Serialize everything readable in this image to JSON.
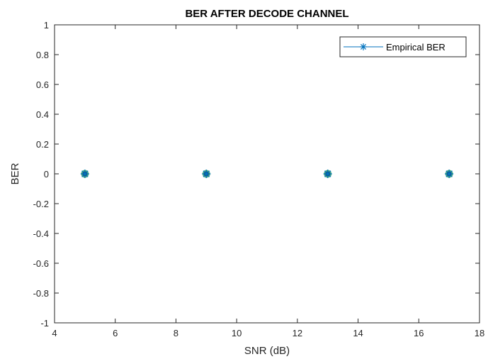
{
  "chart_data": {
    "type": "scatter",
    "title": "BER AFTER DECODE CHANNEL",
    "xlabel": "SNR (dB)",
    "ylabel": "BER",
    "xlim": [
      4,
      18
    ],
    "ylim": [
      -1,
      1
    ],
    "xticks": [
      "4",
      "6",
      "8",
      "10",
      "12",
      "14",
      "16",
      "18"
    ],
    "yticks": [
      "-1",
      "-0.8",
      "-0.6",
      "-0.4",
      "-0.2",
      "0",
      "0.2",
      "0.4",
      "0.6",
      "0.8",
      "1"
    ],
    "grid": false,
    "legend_position": "top-right",
    "series": [
      {
        "name": "Empirical BER",
        "x": [
          5,
          9,
          13,
          17
        ],
        "y": [
          0,
          0,
          0,
          0
        ],
        "color": "#0072BD",
        "marker": "asterisk"
      }
    ],
    "overlay_marker_color": "#2E9E6F"
  }
}
